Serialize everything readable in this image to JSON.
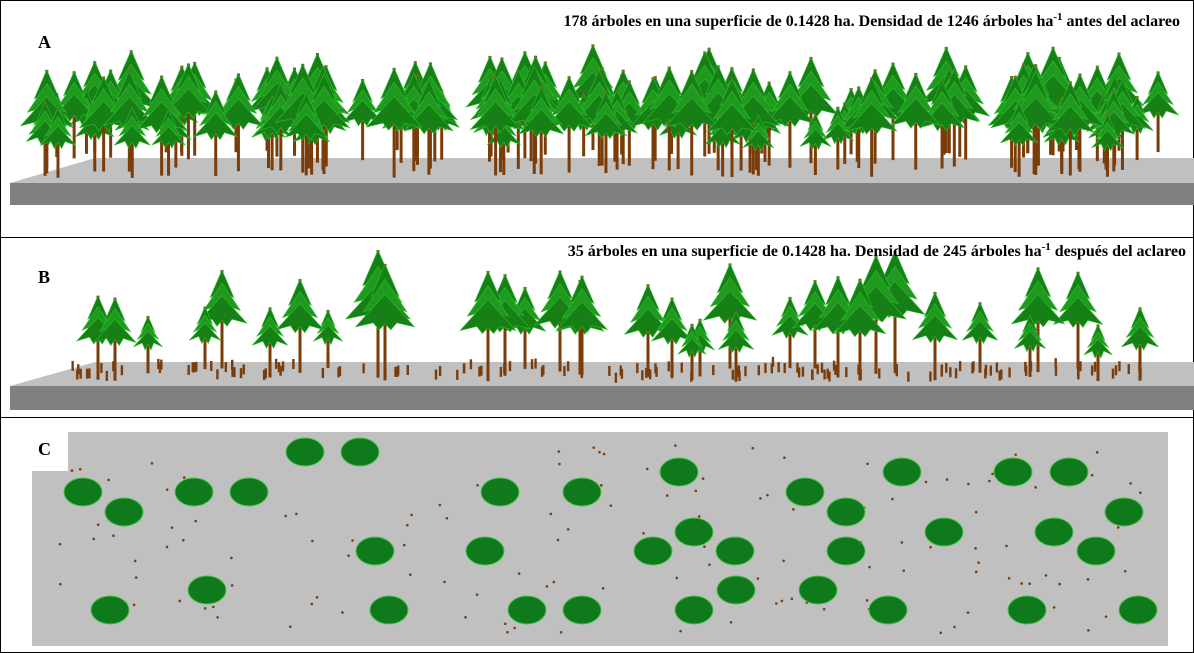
{
  "panels": [
    {
      "label": "A",
      "caption": {
        "before": "178 árboles en una superficie de 0.1428 ha. Densidad de 1246 árboles ha",
        "sup": "-1",
        "after": " antes del aclareo"
      }
    },
    {
      "label": "B",
      "caption": {
        "before": "35 árboles en una superficie de 0.1428 ha. Densidad de 245 árboles ha",
        "sup": "-1",
        "after": " después del aclareo"
      }
    },
    {
      "label": "C"
    }
  ]
}
